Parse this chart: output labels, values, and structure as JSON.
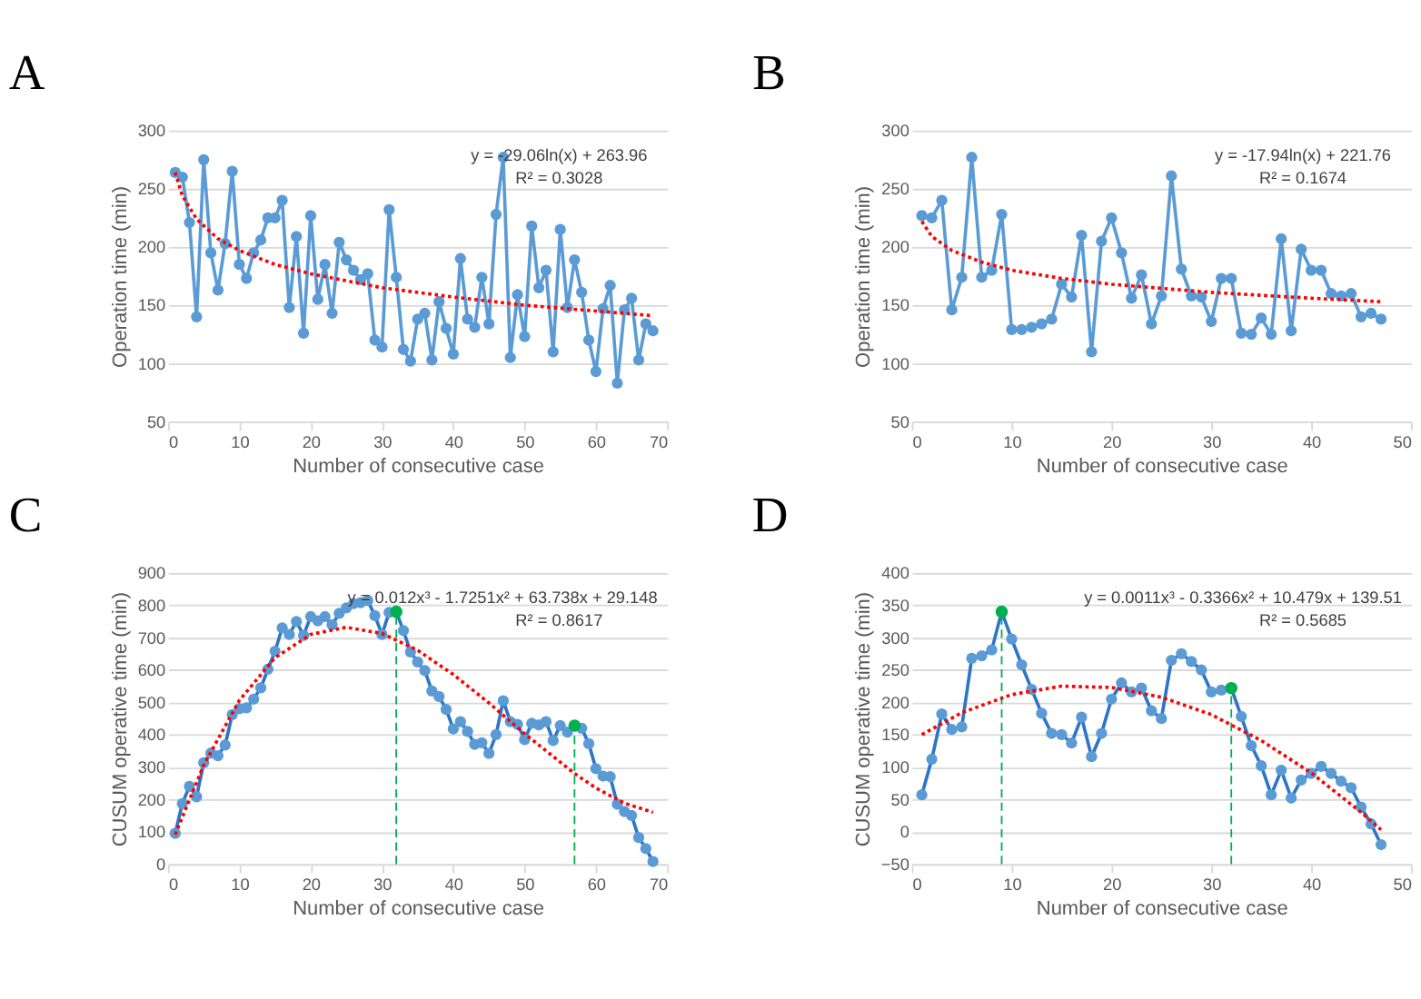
{
  "chart_data": [
    {
      "type": "line",
      "title": "A",
      "xlabel": "Number of consecutive case",
      "ylabel": "Operation time (min)",
      "xlim": [
        0,
        70
      ],
      "xticks": [
        0,
        10,
        20,
        30,
        40,
        50,
        60,
        70
      ],
      "ylim": [
        50,
        300
      ],
      "yticks": [
        50,
        100,
        150,
        200,
        250,
        300
      ],
      "grid": "y",
      "marker": "circle",
      "annotations": [
        "y = -29.06ln(x) + 263.96",
        "R² = 0.3028"
      ],
      "series": [
        {
          "color": "#5b9bd5",
          "line_style": "solid",
          "x": [
            1,
            2,
            3,
            4,
            5,
            6,
            7,
            8,
            9,
            10,
            11,
            12,
            13,
            14,
            15,
            16,
            17,
            18,
            19,
            20,
            21,
            22,
            23,
            24,
            25,
            26,
            27,
            28,
            29,
            30,
            31,
            32,
            33,
            34,
            35,
            36,
            37,
            38,
            39,
            40,
            41,
            42,
            43,
            44,
            45,
            46,
            47,
            48,
            49,
            50,
            51,
            52,
            53,
            54,
            55,
            56,
            57,
            58,
            59,
            60,
            61,
            62,
            63,
            64,
            65,
            66,
            67,
            68
          ],
          "values": [
            264,
            260,
            221,
            140,
            275,
            195,
            163,
            203,
            265,
            185,
            173,
            195,
            206,
            225,
            225,
            240,
            148,
            209,
            126,
            227,
            155,
            185,
            143,
            204,
            189,
            180,
            172,
            177,
            120,
            114,
            232,
            174,
            112,
            102,
            138,
            143,
            103,
            153,
            130,
            108,
            190,
            138,
            131,
            174,
            134,
            228,
            277,
            105,
            159,
            123,
            218,
            165,
            180,
            110,
            215,
            148,
            189,
            161,
            120,
            93,
            147,
            167,
            83,
            146,
            156,
            103,
            134,
            128
          ]
        },
        {
          "color": "#ff0000",
          "marker": "none",
          "line_style": "dotted",
          "x": [
            1,
            2,
            4,
            7,
            10,
            15,
            20,
            30,
            40,
            50,
            60,
            68
          ],
          "values": [
            264,
            244,
            224,
            207,
            197,
            185,
            177,
            165,
            157,
            150,
            145,
            141
          ]
        }
      ]
    },
    {
      "type": "line",
      "title": "B",
      "xlabel": "Number of consecutive case",
      "ylabel": "Operation time (min)",
      "xlim": [
        0,
        50
      ],
      "xticks": [
        0,
        10,
        20,
        30,
        40,
        50
      ],
      "ylim": [
        50,
        300
      ],
      "yticks": [
        50,
        100,
        150,
        200,
        250,
        300
      ],
      "grid": "y",
      "marker": "circle",
      "annotations": [
        "y = -17.94ln(x) + 221.76",
        "R² = 0.1674"
      ],
      "series": [
        {
          "color": "#5b9bd5",
          "line_style": "solid",
          "x": [
            1,
            2,
            3,
            4,
            5,
            6,
            7,
            8,
            9,
            10,
            11,
            12,
            13,
            14,
            15,
            16,
            17,
            18,
            19,
            20,
            21,
            22,
            23,
            24,
            25,
            26,
            27,
            28,
            29,
            30,
            31,
            32,
            33,
            34,
            35,
            36,
            37,
            38,
            39,
            40,
            41,
            42,
            43,
            44,
            45,
            46,
            47
          ],
          "values": [
            227,
            225,
            240,
            146,
            174,
            277,
            174,
            180,
            228,
            129,
            129,
            131,
            134,
            138,
            168,
            157,
            210,
            110,
            205,
            225,
            195,
            156,
            176,
            134,
            158,
            261,
            181,
            158,
            157,
            136,
            173,
            173,
            126,
            125,
            139,
            125,
            207,
            128,
            198,
            180,
            180,
            160,
            158,
            160,
            140,
            143,
            138
          ]
        },
        {
          "color": "#ff0000",
          "marker": "none",
          "line_style": "dotted",
          "x": [
            1,
            2,
            4,
            7,
            10,
            15,
            20,
            30,
            40,
            47
          ],
          "values": [
            222,
            209,
            197,
            187,
            180,
            173,
            168,
            161,
            156,
            153
          ]
        }
      ]
    },
    {
      "type": "line",
      "title": "C",
      "xlabel": "Number of consecutive case",
      "ylabel": "CUSUM operative time (min)",
      "xlim": [
        0,
        70
      ],
      "xticks": [
        0,
        10,
        20,
        30,
        40,
        50,
        60,
        70
      ],
      "ylim": [
        0,
        900
      ],
      "yticks": [
        0,
        100,
        200,
        300,
        400,
        500,
        600,
        700,
        800,
        900
      ],
      "grid": "y",
      "marker": "circle",
      "annotations": [
        "y = 0.012x³ - 1.7251x² + 63.738x + 29.148",
        "R² = 0.8617"
      ],
      "ref_lines": [
        {
          "axis": "x",
          "value": 32,
          "color": "#00b050",
          "line_style": "dashed"
        },
        {
          "axis": "x",
          "value": 57,
          "color": "#00b050",
          "line_style": "dashed"
        }
      ],
      "series": [
        {
          "color": "#2e75c6",
          "line_style": "solid",
          "x": [
            1,
            2,
            3,
            4,
            5,
            6,
            7,
            8,
            9,
            10,
            11,
            12,
            13,
            14,
            15,
            16,
            17,
            18,
            19,
            20,
            21,
            22,
            23,
            24,
            25,
            26,
            27,
            28,
            29,
            30,
            31,
            32,
            33,
            34,
            35,
            36,
            37,
            38,
            39,
            40,
            41,
            42,
            43,
            44,
            45,
            46,
            47,
            48,
            49,
            50,
            51,
            52,
            53,
            54,
            55,
            56,
            57,
            58,
            59,
            60,
            61,
            62,
            63,
            64,
            65,
            66,
            67,
            68
          ],
          "values": [
            95,
            187,
            240,
            208,
            313,
            343,
            335,
            368,
            462,
            480,
            483,
            510,
            545,
            602,
            658,
            730,
            710,
            750,
            707,
            765,
            752,
            765,
            740,
            775,
            792,
            805,
            808,
            815,
            768,
            710,
            778,
            780,
            722,
            656,
            625,
            598,
            535,
            518,
            478,
            418,
            440,
            410,
            370,
            375,
            342,
            400,
            505,
            440,
            432,
            385,
            435,
            430,
            440,
            382,
            428,
            408,
            428,
            420,
            372,
            295,
            272,
            270,
            185,
            162,
            150,
            82,
            48,
            8
          ]
        },
        {
          "color": "#ff0000",
          "marker": "none",
          "line_style": "dotted",
          "x": [
            1,
            5,
            10,
            15,
            20,
            25,
            30,
            35,
            40,
            45,
            50,
            57,
            60,
            64,
            68
          ],
          "values": [
            91,
            306,
            506,
            638,
            710,
            732,
            713,
            661,
            586,
            498,
            403,
            280,
            235,
            188,
            160
          ]
        },
        {
          "type": "scatter",
          "color": "#00b050",
          "x": [
            32,
            57
          ],
          "values": [
            780,
            428
          ]
        }
      ]
    },
    {
      "type": "line",
      "title": "D",
      "xlabel": "Number of consecutive case",
      "ylabel": "CUSUM operative time (min)",
      "xlim": [
        0,
        50
      ],
      "xticks": [
        0,
        10,
        20,
        30,
        40,
        50
      ],
      "ylim": [
        -50,
        400
      ],
      "yticks": [
        -50,
        0,
        50,
        100,
        150,
        200,
        250,
        300,
        350,
        400
      ],
      "grid": "y",
      "marker": "circle",
      "annotations": [
        "y = 0.0011x³ - 0.3366x² + 10.479x + 139.51",
        "R² = 0.5685"
      ],
      "ref_lines": [
        {
          "axis": "x",
          "value": 9,
          "color": "#00b050",
          "line_style": "dashed"
        },
        {
          "axis": "x",
          "value": 32,
          "color": "#00b050",
          "line_style": "dashed"
        }
      ],
      "series": [
        {
          "color": "#2e75c6",
          "line_style": "solid",
          "x": [
            1,
            2,
            3,
            4,
            5,
            6,
            7,
            8,
            9,
            10,
            11,
            12,
            13,
            14,
            15,
            16,
            17,
            18,
            19,
            20,
            21,
            22,
            23,
            24,
            25,
            26,
            27,
            28,
            29,
            30,
            31,
            32,
            33,
            34,
            35,
            36,
            37,
            38,
            39,
            40,
            41,
            42,
            43,
            44,
            45,
            46,
            47
          ],
          "values": [
            57,
            112,
            182,
            158,
            162,
            268,
            272,
            281,
            340,
            298,
            258,
            220,
            183,
            152,
            150,
            137,
            177,
            116,
            152,
            205,
            230,
            216,
            222,
            187,
            175,
            265,
            275,
            263,
            250,
            216,
            219,
            222,
            178,
            133,
            102,
            57,
            95,
            52,
            80,
            90,
            101,
            90,
            78,
            68,
            38,
            12,
            -20
          ]
        },
        {
          "color": "#ff0000",
          "marker": "none",
          "line_style": "dotted",
          "x": [
            1,
            5,
            10,
            15,
            20,
            25,
            30,
            35,
            40,
            45,
            47
          ],
          "values": [
            150,
            184,
            212,
            225,
            223,
            208,
            181,
            141,
            91,
            30,
            3
          ]
        },
        {
          "type": "scatter",
          "color": "#00b050",
          "x": [
            9,
            32
          ],
          "values": [
            340,
            222
          ]
        }
      ]
    }
  ]
}
